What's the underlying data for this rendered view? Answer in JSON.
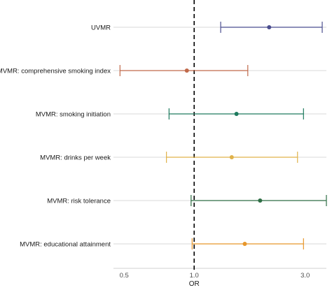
{
  "chart_data": {
    "type": "forest",
    "title": "",
    "xlabel": "OR",
    "ylabel": "",
    "x_scale": "log",
    "xlim": [
      0.45,
      3.7
    ],
    "x_ticks": [
      {
        "value": 0.5,
        "label": "0.5"
      },
      {
        "value": 1.0,
        "label": "1.0"
      },
      {
        "value": 3.0,
        "label": "3.0"
      }
    ],
    "reference_line": {
      "value": 1.0,
      "style": "dashed",
      "color": "#000000"
    },
    "grid": "horizontal lines at each row",
    "rows": [
      {
        "label": "UVMR",
        "or": 2.1,
        "lower": 1.3,
        "upper": 3.55,
        "color": "#4b4e8f"
      },
      {
        "label": "MVMR: comprehensive smoking index",
        "or": 0.93,
        "lower": 0.48,
        "upper": 1.7,
        "color": "#c0694a"
      },
      {
        "label": "MVMR: smoking initiation",
        "or": 1.52,
        "lower": 0.78,
        "upper": 2.95,
        "color": "#1e7a5e"
      },
      {
        "label": "MVMR: drinks per week",
        "or": 1.45,
        "lower": 0.76,
        "upper": 2.78,
        "color": "#e0b24a"
      },
      {
        "label": "MVMR: risk tolerance",
        "or": 1.92,
        "lower": 0.97,
        "upper": 3.7,
        "color": "#2f6e45"
      },
      {
        "label": "MVMR: educational attainment",
        "or": 1.65,
        "lower": 0.98,
        "upper": 2.95,
        "color": "#e7962b"
      }
    ]
  }
}
